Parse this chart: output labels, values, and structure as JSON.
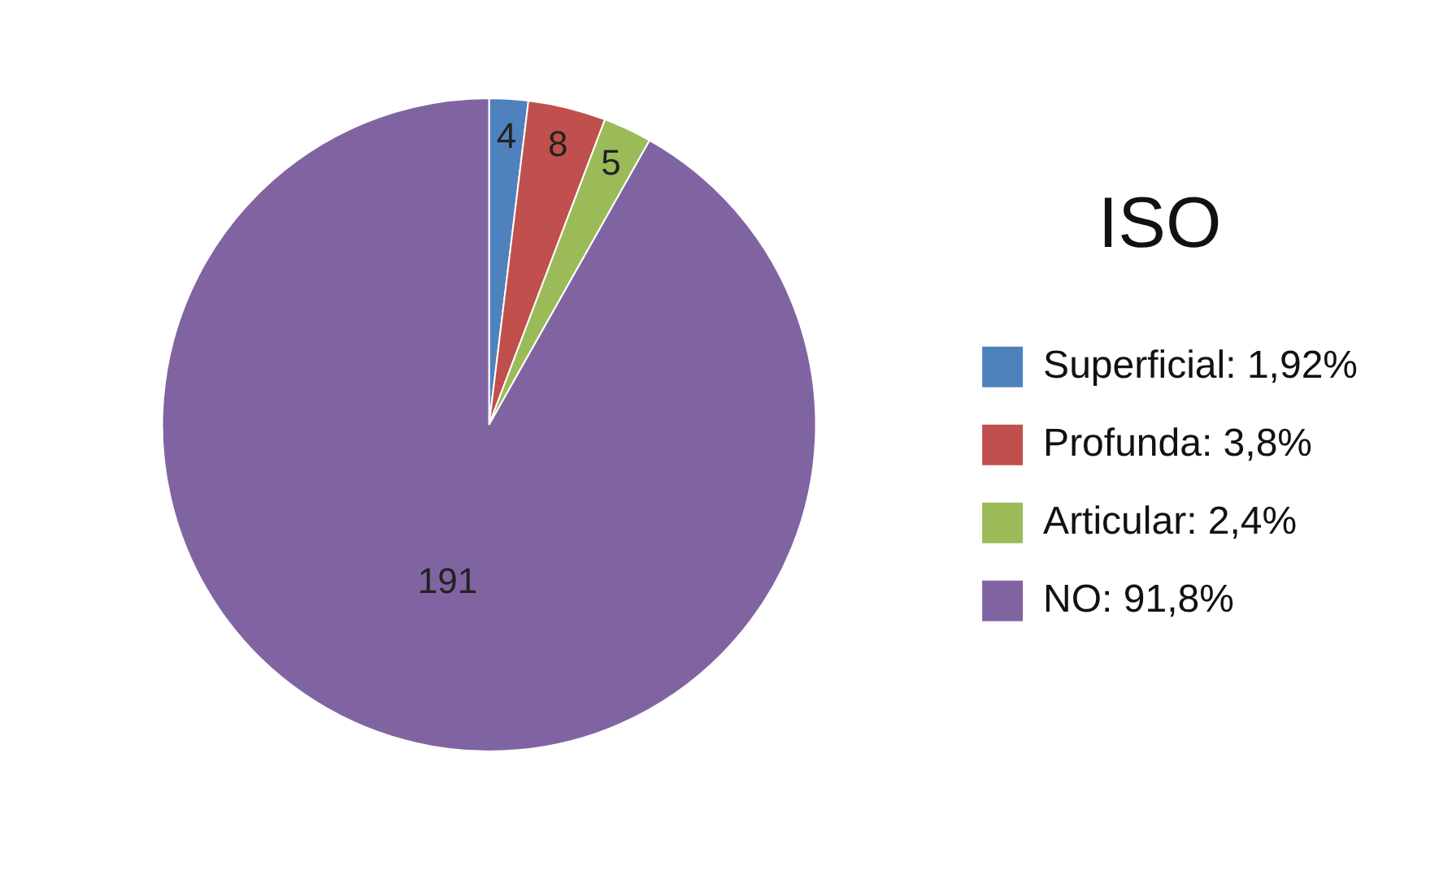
{
  "chart_data": {
    "type": "pie",
    "legend_title": "ISO",
    "categories": [
      "Superficial: 1,92%",
      "Profunda: 3,8%",
      "Articular: 2,4%",
      "NO: 91,8%"
    ],
    "values": [
      4,
      8,
      5,
      191
    ],
    "colors": [
      "#4f81bd",
      "#c0504d",
      "#9bbb59",
      "#8064a2"
    ],
    "data_labels": true,
    "legend": "right"
  }
}
